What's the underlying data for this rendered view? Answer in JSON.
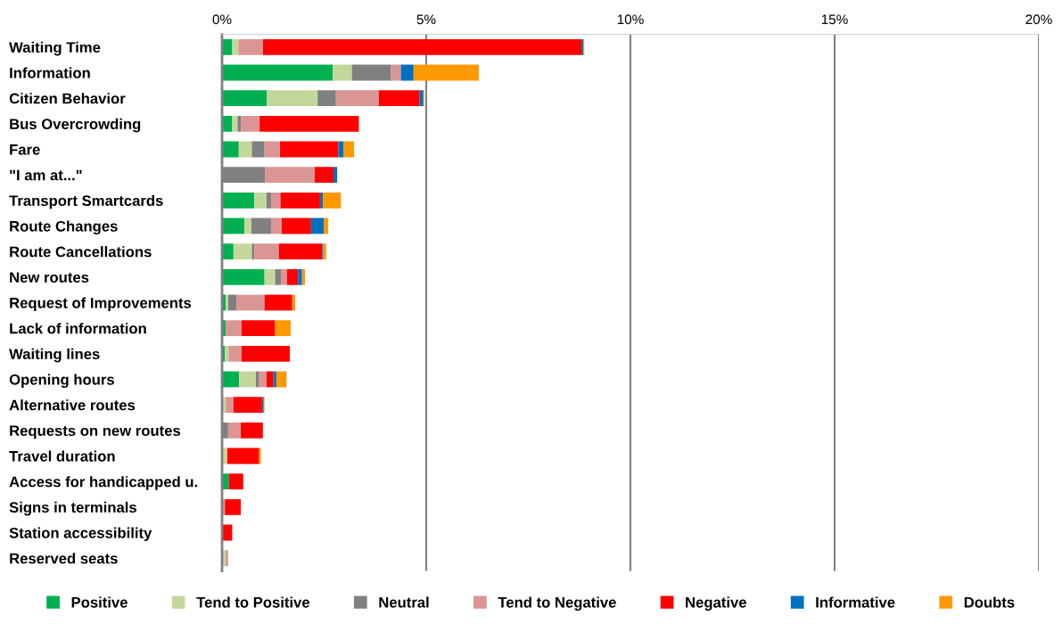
{
  "chart_data": {
    "type": "bar",
    "orientation": "horizontal",
    "stacked": true,
    "categories": [
      "Waiting Time",
      "Information",
      "Citizen Behavior",
      "Bus Overcrowding",
      "Fare",
      "\"I am at...\"",
      "Transport Smartcards",
      "Route Changes",
      "Route Cancellations",
      "New routes",
      "Request of Improvements",
      "Lack of information",
      "Waiting lines",
      "Opening hours",
      "Alternative routes",
      "Requests on new routes",
      "Travel duration",
      "Access for handicapped u.",
      "Signs in terminals",
      "Station accessibility",
      "Reserved seats"
    ],
    "series": [
      {
        "name": "Positive",
        "color": "#00b050",
        "values": [
          0.25,
          2.71,
          1.1,
          0.25,
          0.41,
          0,
          0.79,
          0.55,
          0.28,
          1.04,
          0.09,
          0.09,
          0.07,
          0.42,
          0,
          0,
          0,
          0.17,
          0,
          0,
          0
        ]
      },
      {
        "name": "Tend to Positive",
        "color": "#c4d79b",
        "values": [
          0.15,
          0.47,
          1.24,
          0.13,
          0.32,
          null,
          0.3,
          0.17,
          0.45,
          0.26,
          0.06,
          0,
          0.09,
          0.41,
          0.09,
          0,
          0.13,
          0,
          0,
          0,
          0.09
        ]
      },
      {
        "name": "Neutral",
        "color": "#808080",
        "values": [
          0,
          0.96,
          0.45,
          0.08,
          0.31,
          1.05,
          0.11,
          0.48,
          0.06,
          0.14,
          0.2,
          0,
          0,
          0.08,
          0,
          0.15,
          0,
          0,
          0,
          0,
          0
        ]
      },
      {
        "name": "Tend to Negative",
        "color": "#da9694",
        "values": [
          0.6,
          0.24,
          1.05,
          0.46,
          0.38,
          1.22,
          0.23,
          0.26,
          0.6,
          0.15,
          0.69,
          0.39,
          0.32,
          0.18,
          0.19,
          0.31,
          0,
          0,
          0.07,
          0,
          0.06
        ]
      },
      {
        "name": "Negative",
        "color": "#ff0000",
        "values": [
          7.8,
          0,
          1.0,
          2.43,
          1.43,
          0.46,
          0.97,
          0.72,
          1.06,
          0.27,
          0.68,
          0.82,
          1.18,
          0.17,
          0.7,
          0.54,
          0.78,
          0.35,
          0.39,
          0.25,
          0
        ]
      },
      {
        "name": "Informative",
        "color": "#0070c0",
        "values": [
          0.05,
          0.31,
          0.09,
          0,
          0.13,
          0.09,
          0.07,
          0.31,
          0.03,
          0.1,
          0,
          0,
          0,
          0.07,
          0.04,
          0,
          null,
          0,
          0,
          0,
          0
        ]
      },
      {
        "name": "Doubts",
        "color": "#ff9900",
        "values": [
          0.02,
          1.6,
          0.02,
          0,
          0.25,
          0,
          0.44,
          0.11,
          0.07,
          0.07,
          0.07,
          0.38,
          0,
          0.25,
          0.02,
          0,
          0.04,
          0,
          0,
          0,
          0
        ]
      }
    ],
    "xlim": [
      0,
      20
    ],
    "xticks": [
      {
        "value": 0,
        "label": "0%"
      },
      {
        "value": 5,
        "label": "5%"
      },
      {
        "value": 10,
        "label": "10%"
      },
      {
        "value": 15,
        "label": "15%"
      },
      {
        "value": 20,
        "label": "20%"
      }
    ],
    "grid": "x",
    "legend": "bottom"
  }
}
